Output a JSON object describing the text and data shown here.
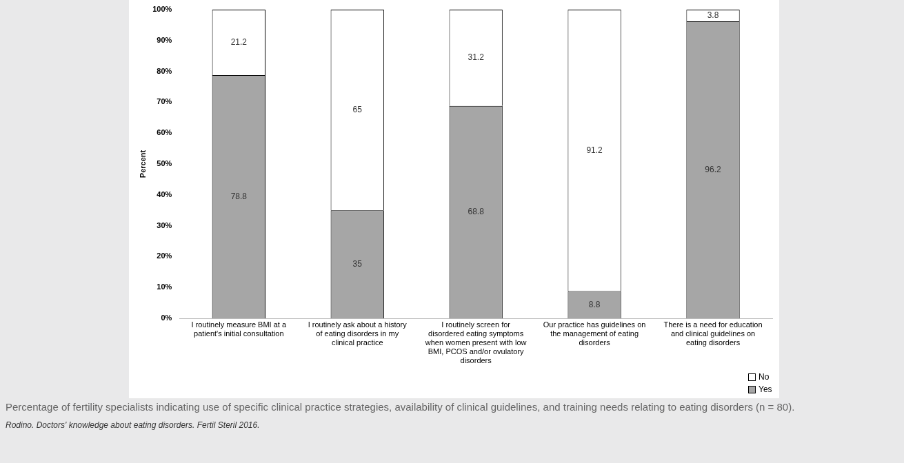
{
  "chart_data": {
    "type": "bar",
    "stacked": true,
    "ylabel": "Percent",
    "categories": [
      "I routinely measure BMI at a patient's initial consultation",
      "I routinely ask about a history of eating disorders in my clinical practice",
      "I routinely screen for disordered eating symptoms when women present with low BMI, PCOS and/or ovulatory disorders",
      "Our practice has guidelines on the management of eating disorders",
      "There is a need for education and clinical guidelines on eating disorders"
    ],
    "series": [
      {
        "name": "Yes",
        "color": "#a6a6a6",
        "values": [
          78.8,
          35,
          68.8,
          8.8,
          96.2
        ]
      },
      {
        "name": "No",
        "color": "#ffffff",
        "values": [
          21.2,
          65,
          31.2,
          91.2,
          3.8
        ]
      }
    ],
    "ylim": [
      0,
      100
    ],
    "yticks": [
      {
        "value": 0,
        "label": "0%"
      },
      {
        "value": 10,
        "label": "10%"
      },
      {
        "value": 20,
        "label": "20%"
      },
      {
        "value": 30,
        "label": "30%"
      },
      {
        "value": 40,
        "label": "40%"
      },
      {
        "value": 50,
        "label": "50%"
      },
      {
        "value": 60,
        "label": "60%"
      },
      {
        "value": 70,
        "label": "70%"
      },
      {
        "value": 80,
        "label": "80%"
      },
      {
        "value": 90,
        "label": "90%"
      },
      {
        "value": 100,
        "label": "100%"
      }
    ],
    "grid": false,
    "legend": "bottom right",
    "data_labels": true,
    "annotations": [
      "Percentage of fertility specialists indicating use of specific clinical practice strategies, availability of clinical guidelines, and training needs relating to eating disorders (n = 80).",
      "Rodino. Doctors' knowledge about eating disorders. Fertil Steril 2016."
    ]
  }
}
